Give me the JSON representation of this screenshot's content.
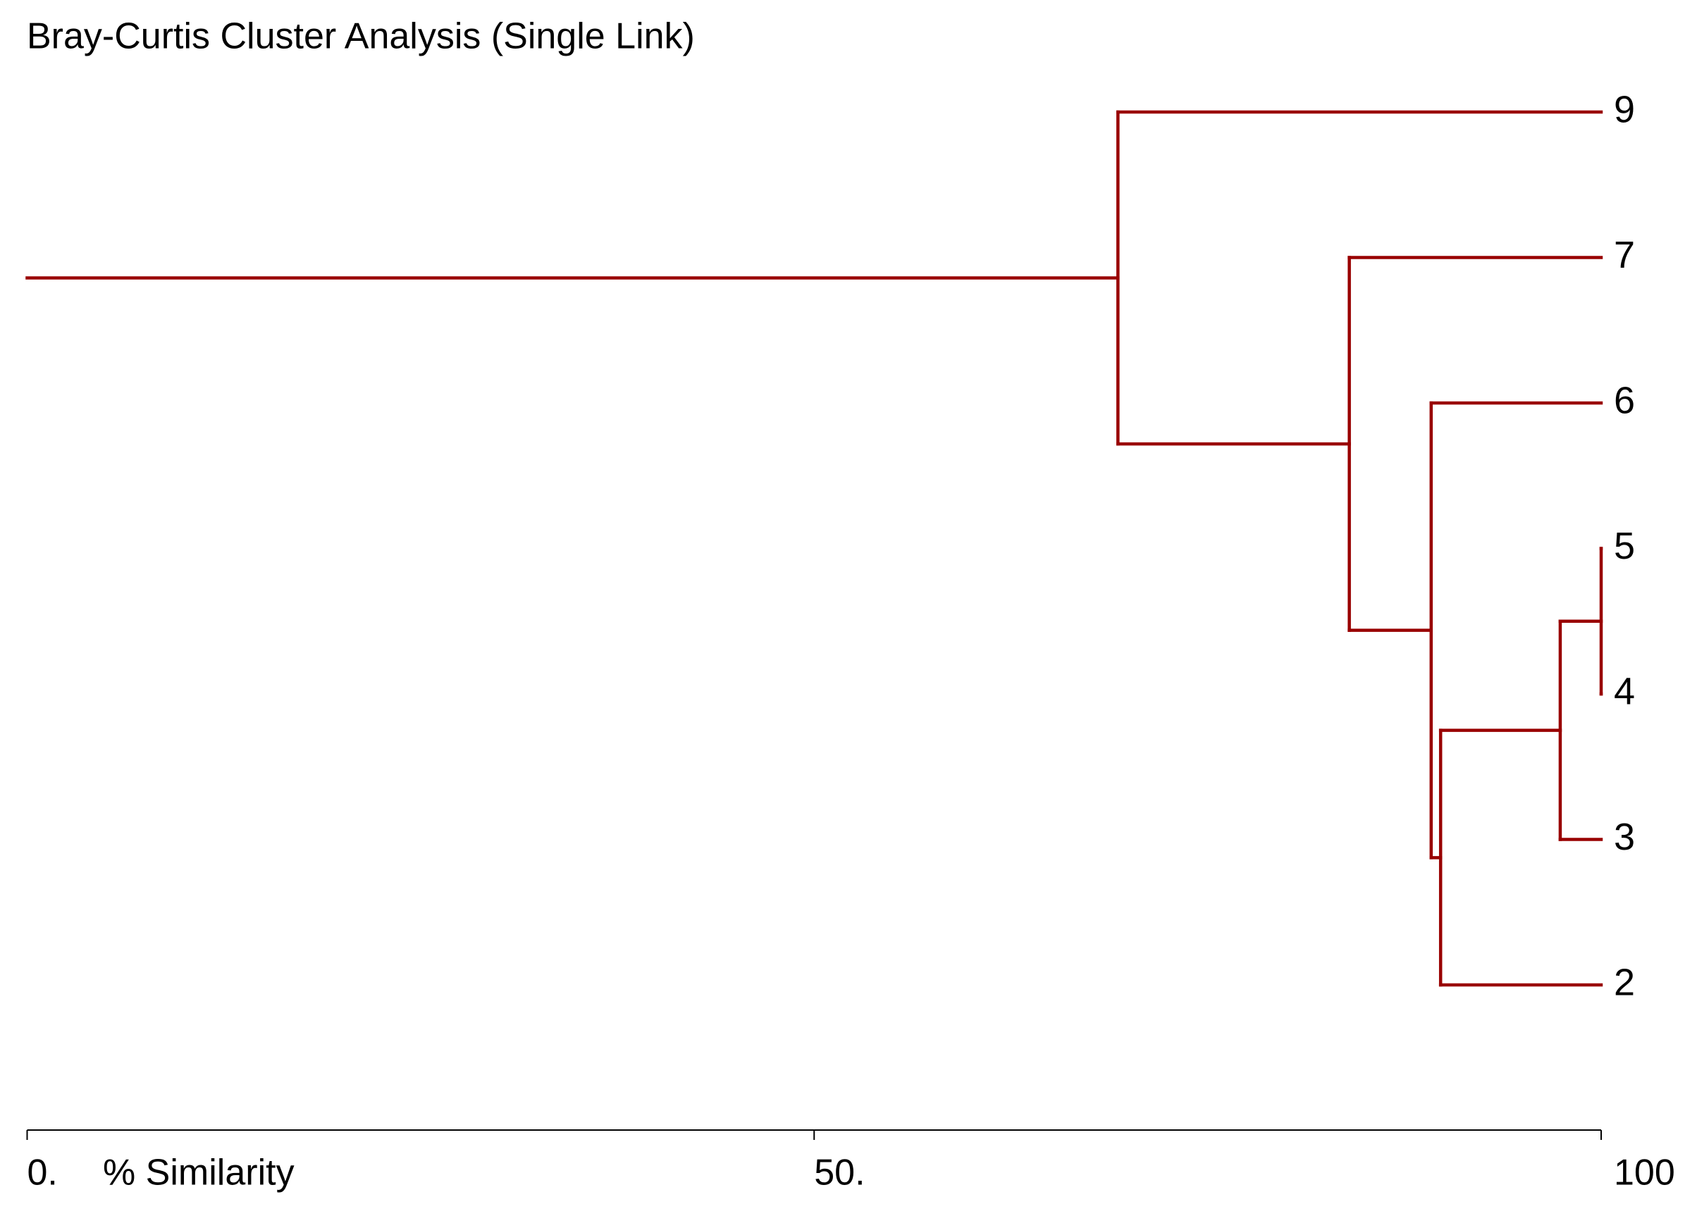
{
  "chart_data": {
    "type": "dendrogram",
    "title": "Bray-Curtis Cluster Analysis (Single Link)",
    "x_label": "% Similarity",
    "color": "#990000",
    "xlim": [
      0,
      100
    ],
    "xticks": [
      {
        "value": 0,
        "label": "0."
      },
      {
        "value": 50,
        "label": "50."
      },
      100
    ],
    "tree": {
      "value": 69.3,
      "children": [
        {
          "label": "9"
        },
        {
          "value": 84.0,
          "children": [
            {
              "label": "7"
            },
            {
              "value": 89.2,
              "children": [
                {
                  "label": "6"
                },
                {
                  "value": 89.8,
                  "children": [
                    {
                      "value": 97.4,
                      "children": [
                        {
                          "value": 100,
                          "children": [
                            {
                              "label": "5"
                            },
                            {
                              "label": "4"
                            }
                          ]
                        },
                        {
                          "label": "3"
                        }
                      ]
                    },
                    {
                      "label": "2"
                    }
                  ]
                }
              ]
            }
          ]
        }
      ]
    }
  }
}
